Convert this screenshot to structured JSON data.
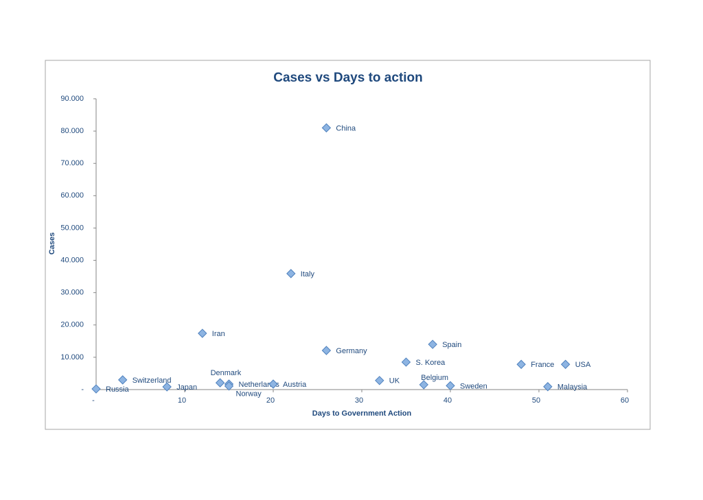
{
  "chart_data": {
    "type": "scatter",
    "title": "Cases vs Days to action",
    "x_label": "Days to Government Action",
    "y_label": "Cases",
    "xlim": [
      0,
      60
    ],
    "xticks": [
      {
        "value": 0,
        "label": "-"
      },
      10,
      20,
      30,
      40,
      50,
      60
    ],
    "ylim": [
      0,
      90000
    ],
    "yticks": [
      {
        "value": 0,
        "label": "-"
      },
      {
        "value": 10000,
        "label": "10.000"
      },
      {
        "value": 20000,
        "label": "20.000"
      },
      {
        "value": 30000,
        "label": "30.000"
      },
      {
        "value": 40000,
        "label": "40.000"
      },
      {
        "value": 50000,
        "label": "50.000"
      },
      {
        "value": 60000,
        "label": "60.000"
      },
      {
        "value": 70000,
        "label": "70.000"
      },
      {
        "value": 80000,
        "label": "80.000"
      },
      {
        "value": 90000,
        "label": "90.000"
      }
    ],
    "series": [
      {
        "color": "#8db4e2",
        "labels": [
          "Russia",
          "Switzerland",
          "Japan",
          "Iran",
          "Denmark",
          "Netherlands",
          "Norway",
          "Austria",
          "Italy",
          "China",
          "Germany",
          "UK",
          "S. Korea",
          "Belgium",
          "Spain",
          "Sweden",
          "France",
          "Malaysia",
          "USA"
        ],
        "x": [
          0,
          3,
          8,
          12,
          14,
          15,
          15,
          20,
          22,
          26,
          26,
          32,
          35,
          37,
          38,
          40,
          48,
          51,
          53
        ],
        "values": [
          200,
          3000,
          850,
          17400,
          2100,
          1700,
          1100,
          1700,
          35900,
          81000,
          12100,
          2800,
          8500,
          1500,
          14000,
          1200,
          7800,
          900,
          7800
        ]
      }
    ]
  }
}
